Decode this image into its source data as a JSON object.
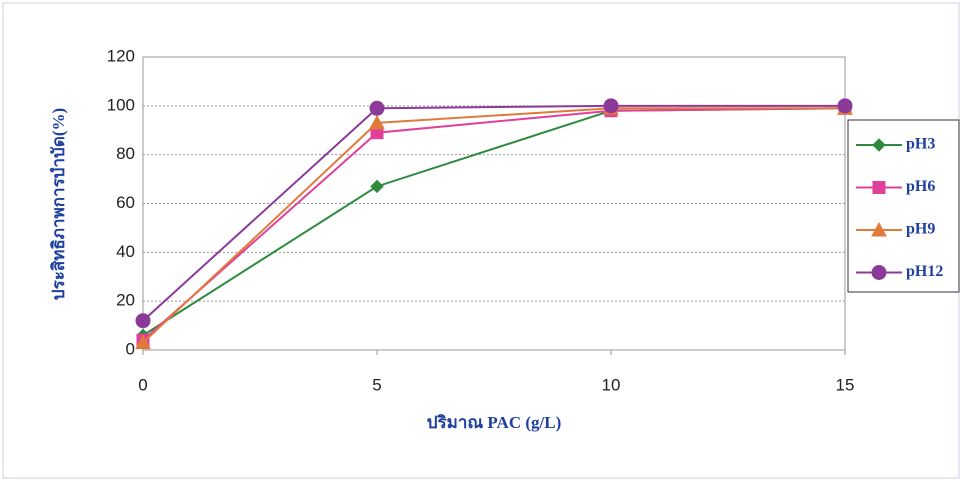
{
  "chart_data": {
    "type": "line",
    "x_label": "ปริมาณ PAC (g/L)",
    "y_label": "ประสิทธิภาพการบำบัด(%)",
    "x": [
      0,
      5,
      10,
      15
    ],
    "xlim": [
      0,
      15
    ],
    "xticks": [
      0,
      5,
      10,
      15
    ],
    "ylim": [
      0,
      120
    ],
    "yticks": [
      0,
      20,
      40,
      60,
      80,
      100,
      120
    ],
    "grid": true,
    "legend": "right",
    "series": [
      {
        "name": "pH3",
        "color": "#2e8b3e",
        "marker": "diamond",
        "values": [
          6,
          67,
          98,
          99
        ]
      },
      {
        "name": "pH6",
        "color": "#e0409a",
        "marker": "square",
        "values": [
          4,
          89,
          98,
          99
        ]
      },
      {
        "name": "pH9",
        "color": "#e07a3a",
        "marker": "triangle",
        "values": [
          3,
          93,
          99,
          99
        ]
      },
      {
        "name": "pH12",
        "color": "#8b3a9a",
        "marker": "circle",
        "values": [
          12,
          99,
          100,
          100
        ]
      }
    ]
  }
}
